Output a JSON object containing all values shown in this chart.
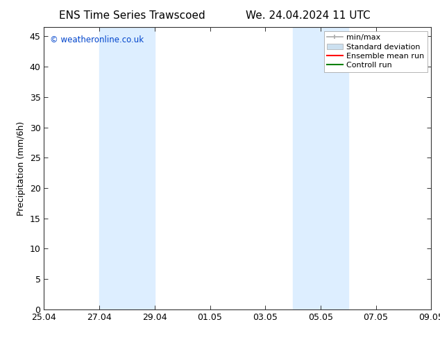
{
  "title_left": "ENS Time Series Trawscoed",
  "title_right": "We. 24.04.2024 11 UTC",
  "ylabel": "Precipitation (mm/6h)",
  "bg_color": "#ffffff",
  "plot_bg_color": "#ffffff",
  "xticklabels": [
    "25.04",
    "27.04",
    "29.04",
    "01.05",
    "03.05",
    "05.05",
    "07.05",
    "09.05"
  ],
  "xtick_positions": [
    0,
    2,
    4,
    6,
    8,
    10,
    12,
    14
  ],
  "ylim": [
    0,
    46.5
  ],
  "yticks": [
    0,
    5,
    10,
    15,
    20,
    25,
    30,
    35,
    40,
    45
  ],
  "xlim": [
    0,
    14
  ],
  "shaded_1_start": 2,
  "shaded_1_end": 4,
  "shaded_2_start": 9,
  "shaded_2_end": 11,
  "shade_color": "#ddeeff",
  "watermark": "© weatheronline.co.uk",
  "watermark_color": "#0044cc",
  "title_fontsize": 11,
  "label_fontsize": 9,
  "tick_fontsize": 9,
  "legend_fontsize": 8,
  "minmax_color": "#aaaaaa",
  "std_color": "#cce0f0",
  "ensemble_color": "#ff0000",
  "control_color": "#008000"
}
